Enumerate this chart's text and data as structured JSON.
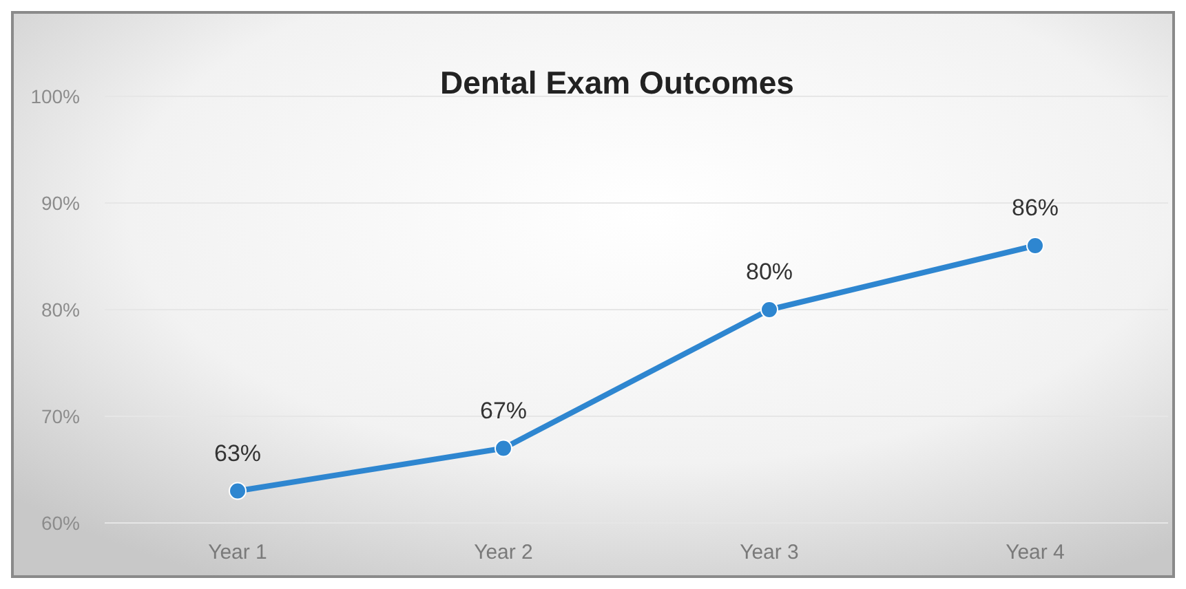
{
  "chart_data": {
    "type": "line",
    "title": "Dental Exam Outcomes",
    "categories": [
      "Year 1",
      "Year 2",
      "Year 3",
      "Year 4"
    ],
    "series": [
      {
        "color": "#2e86d0",
        "values": [
          63,
          67,
          80,
          86
        ],
        "value_labels": [
          "63%",
          "67%",
          "80%",
          "86%"
        ]
      }
    ],
    "ylim": [
      60,
      100
    ],
    "yticks": [
      {
        "value": 60,
        "label": "60%"
      },
      {
        "value": 70,
        "label": "70%"
      },
      {
        "value": 80,
        "label": "80%"
      },
      {
        "value": 90,
        "label": "90%"
      },
      {
        "value": 100,
        "label": "100%"
      }
    ],
    "grid": "y",
    "marker": "circle",
    "line_style": "solid"
  }
}
